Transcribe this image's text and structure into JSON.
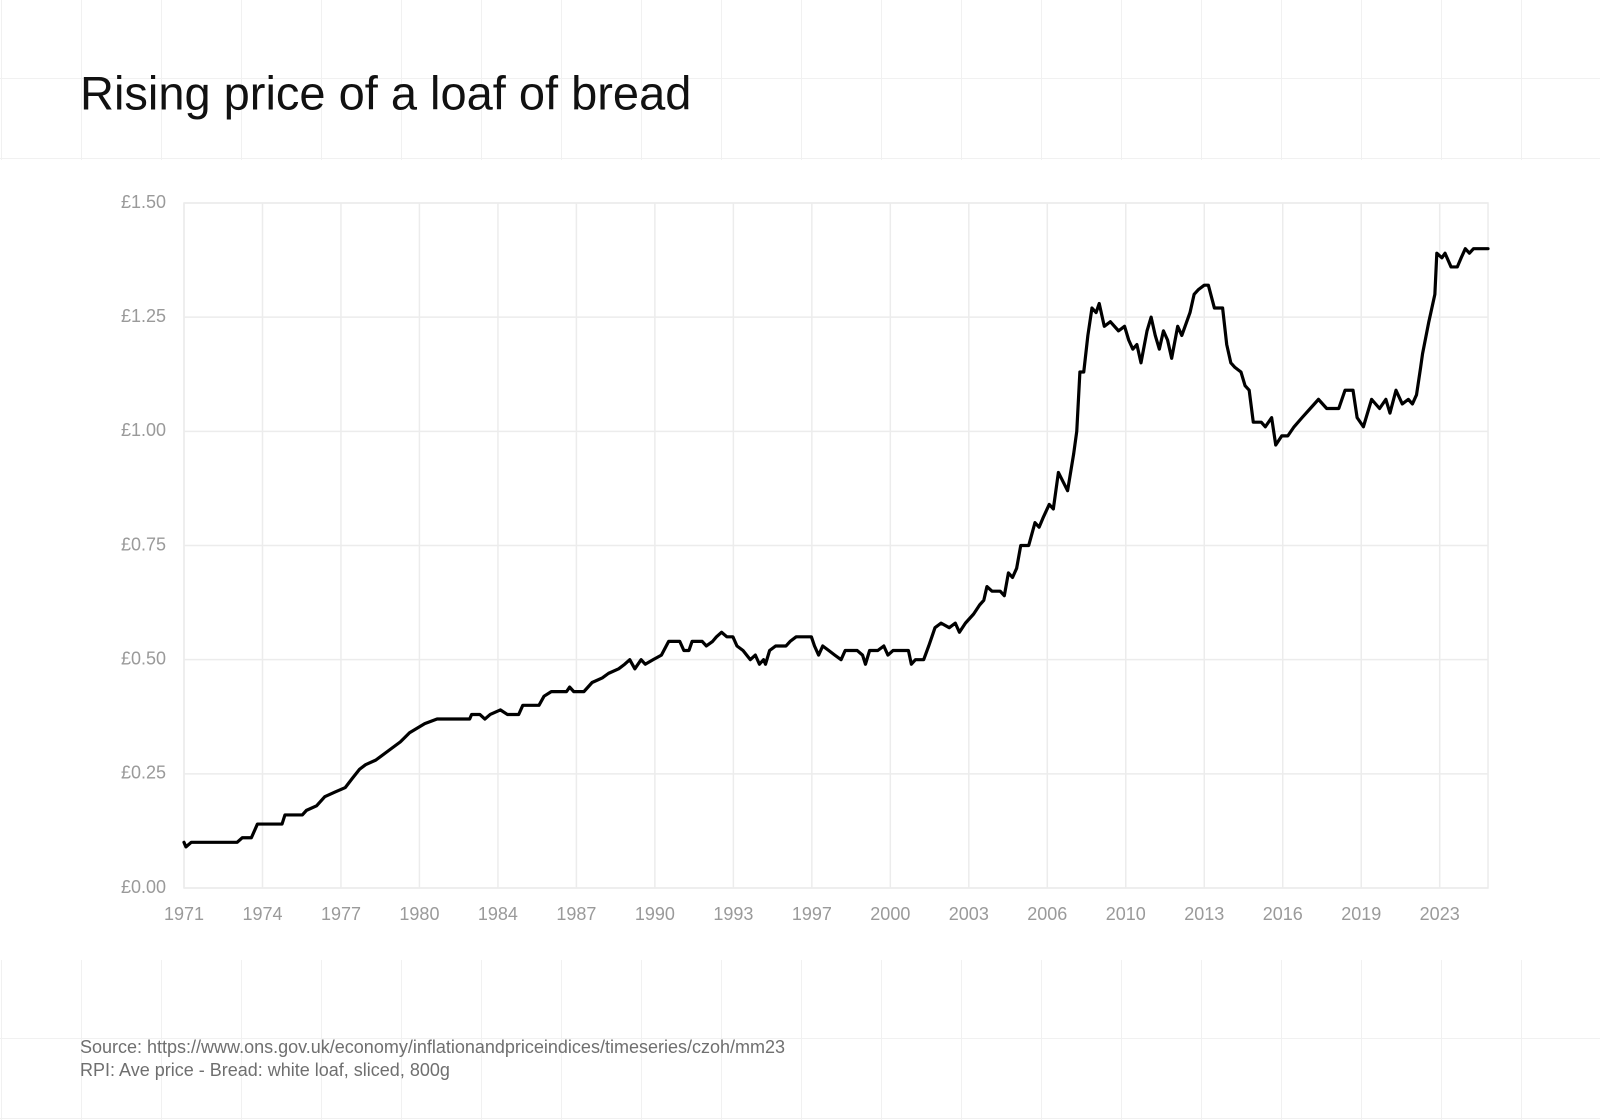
{
  "chart_data": {
    "type": "line",
    "title": "Rising price of a loaf of bread",
    "annotations": [
      "Source: https://www.ons.gov.uk/economy/inflationandpriceindices/timeseries/czoh/mm23",
      "RPI: Ave price - Bread: white loaf, sliced, 800g"
    ],
    "color": "#000000",
    "grid": true,
    "xlim": [
      1971,
      2025
    ],
    "ylim": [
      0,
      1.5
    ],
    "xticks": [
      1971,
      {
        "value": 1974.25,
        "label": "1974"
      },
      {
        "value": 1977.5,
        "label": "1977"
      },
      {
        "value": 1980.75,
        "label": "1980"
      },
      1984,
      {
        "value": 1987.25,
        "label": "1987"
      },
      {
        "value": 1990.5,
        "label": "1990"
      },
      {
        "value": 1993.75,
        "label": "1993"
      },
      1997,
      {
        "value": 2000.25,
        "label": "2000"
      },
      {
        "value": 2003.5,
        "label": "2003"
      },
      {
        "value": 2006.75,
        "label": "2006"
      },
      2010,
      {
        "value": 2013.25,
        "label": "2013"
      },
      {
        "value": 2016.5,
        "label": "2016"
      },
      {
        "value": 2019.75,
        "label": "2019"
      },
      2023
    ],
    "yticks": [
      {
        "value": 0,
        "label": "£0.00"
      },
      {
        "value": 0.25,
        "label": "£0.25"
      },
      {
        "value": 0.5,
        "label": "£0.50"
      },
      {
        "value": 0.75,
        "label": "£0.75"
      },
      {
        "value": 1,
        "label": "£1.00"
      },
      {
        "value": 1.25,
        "label": "£1.25"
      },
      {
        "value": 1.5,
        "label": "£1.50"
      }
    ],
    "x": [
      1971.0,
      1971.08,
      1971.3,
      1973.2,
      1973.41,
      1973.79,
      1974.04,
      1975.06,
      1975.18,
      1975.9,
      1976.07,
      1976.49,
      1976.83,
      1977.25,
      1977.68,
      1977.97,
      1978.27,
      1978.52,
      1978.94,
      1979.45,
      1979.96,
      1980.34,
      1980.97,
      1981.48,
      1982.83,
      1982.91,
      1983.25,
      1983.46,
      1983.68,
      1984.1,
      1984.39,
      1984.86,
      1985.03,
      1985.7,
      1985.91,
      1986.21,
      1986.84,
      1986.97,
      1987.14,
      1987.56,
      1987.9,
      1988.32,
      1988.58,
      1989.0,
      1989.25,
      1989.46,
      1989.67,
      1989.93,
      1990.1,
      1990.43,
      1990.77,
      1991.07,
      1991.53,
      1991.7,
      1991.91,
      1992.04,
      1992.46,
      1992.63,
      1992.89,
      1993.05,
      1993.26,
      1993.48,
      1993.73,
      1993.9,
      1994.15,
      1994.45,
      1994.66,
      1994.83,
      1995.0,
      1995.08,
      1995.25,
      1995.5,
      1995.93,
      1996.1,
      1996.35,
      1996.98,
      1997.11,
      1997.28,
      1997.45,
      1997.7,
      1997.95,
      1998.21,
      1998.38,
      1998.88,
      1999.1,
      1999.22,
      1999.39,
      1999.73,
      1999.98,
      2000.15,
      2000.36,
      2001.0,
      2001.12,
      2001.29,
      2001.63,
      2001.84,
      2002.1,
      2002.35,
      2002.69,
      2002.94,
      2003.11,
      2003.36,
      2003.7,
      2003.95,
      2004.12,
      2004.25,
      2004.46,
      2004.8,
      2004.97,
      2005.14,
      2005.31,
      2005.48,
      2005.65,
      2005.98,
      2006.24,
      2006.41,
      2006.57,
      2006.83,
      2007.0,
      2007.21,
      2007.59,
      2007.84,
      2007.97,
      2008.1,
      2008.26,
      2008.43,
      2008.6,
      2008.77,
      2008.9,
      2009.11,
      2009.36,
      2009.7,
      2009.95,
      2010.12,
      2010.29,
      2010.46,
      2010.63,
      2010.88,
      2011.05,
      2011.22,
      2011.39,
      2011.56,
      2011.73,
      2011.9,
      2012.15,
      2012.32,
      2012.66,
      2012.83,
      2013.0,
      2013.25,
      2013.42,
      2013.67,
      2014.01,
      2014.18,
      2014.35,
      2014.52,
      2014.77,
      2014.94,
      2015.11,
      2015.28,
      2015.61,
      2015.78,
      2016.04,
      2016.21,
      2016.46,
      2016.71,
      2016.97,
      2017.3,
      2017.64,
      2017.98,
      2018.32,
      2018.82,
      2019.08,
      2019.41,
      2019.58,
      2019.84,
      2020.18,
      2020.51,
      2020.77,
      2020.94,
      2021.19,
      2021.45,
      2021.7,
      2021.87,
      2022.04,
      2022.21,
      2022.29,
      2022.55,
      2022.8,
      2022.88,
      2023.09,
      2023.22,
      2023.47,
      2023.73,
      2023.89,
      2024.06,
      2024.23,
      2024.4,
      2025.0
    ],
    "values": [
      0.1,
      0.09,
      0.1,
      0.1,
      0.11,
      0.11,
      0.14,
      0.14,
      0.16,
      0.16,
      0.17,
      0.18,
      0.2,
      0.21,
      0.22,
      0.24,
      0.26,
      0.27,
      0.28,
      0.3,
      0.32,
      0.34,
      0.36,
      0.37,
      0.37,
      0.38,
      0.38,
      0.37,
      0.38,
      0.39,
      0.38,
      0.38,
      0.4,
      0.4,
      0.42,
      0.43,
      0.43,
      0.44,
      0.43,
      0.43,
      0.45,
      0.46,
      0.47,
      0.48,
      0.49,
      0.5,
      0.48,
      0.5,
      0.49,
      0.5,
      0.51,
      0.54,
      0.54,
      0.52,
      0.52,
      0.54,
      0.54,
      0.53,
      0.54,
      0.55,
      0.56,
      0.55,
      0.55,
      0.53,
      0.52,
      0.5,
      0.51,
      0.49,
      0.5,
      0.49,
      0.52,
      0.53,
      0.53,
      0.54,
      0.55,
      0.55,
      0.53,
      0.51,
      0.53,
      0.52,
      0.51,
      0.5,
      0.52,
      0.52,
      0.51,
      0.49,
      0.52,
      0.52,
      0.53,
      0.51,
      0.52,
      0.52,
      0.49,
      0.5,
      0.5,
      0.53,
      0.57,
      0.58,
      0.57,
      0.58,
      0.56,
      0.58,
      0.6,
      0.62,
      0.63,
      0.66,
      0.65,
      0.65,
      0.64,
      0.69,
      0.68,
      0.7,
      0.75,
      0.75,
      0.8,
      0.79,
      0.81,
      0.84,
      0.83,
      0.91,
      0.87,
      0.95,
      1.0,
      1.13,
      1.13,
      1.21,
      1.27,
      1.26,
      1.28,
      1.23,
      1.24,
      1.22,
      1.23,
      1.2,
      1.18,
      1.19,
      1.15,
      1.22,
      1.25,
      1.21,
      1.18,
      1.22,
      1.2,
      1.16,
      1.23,
      1.21,
      1.26,
      1.3,
      1.31,
      1.32,
      1.32,
      1.27,
      1.27,
      1.19,
      1.15,
      1.14,
      1.13,
      1.1,
      1.09,
      1.02,
      1.02,
      1.01,
      1.03,
      0.97,
      0.99,
      0.99,
      1.01,
      1.03,
      1.05,
      1.07,
      1.05,
      1.05,
      1.09,
      1.09,
      1.03,
      1.01,
      1.07,
      1.05,
      1.07,
      1.04,
      1.09,
      1.06,
      1.07,
      1.06,
      1.08,
      1.14,
      1.17,
      1.24,
      1.3,
      1.39,
      1.38,
      1.39,
      1.36,
      1.36,
      1.38,
      1.4,
      1.39,
      1.4,
      1.4
    ]
  }
}
